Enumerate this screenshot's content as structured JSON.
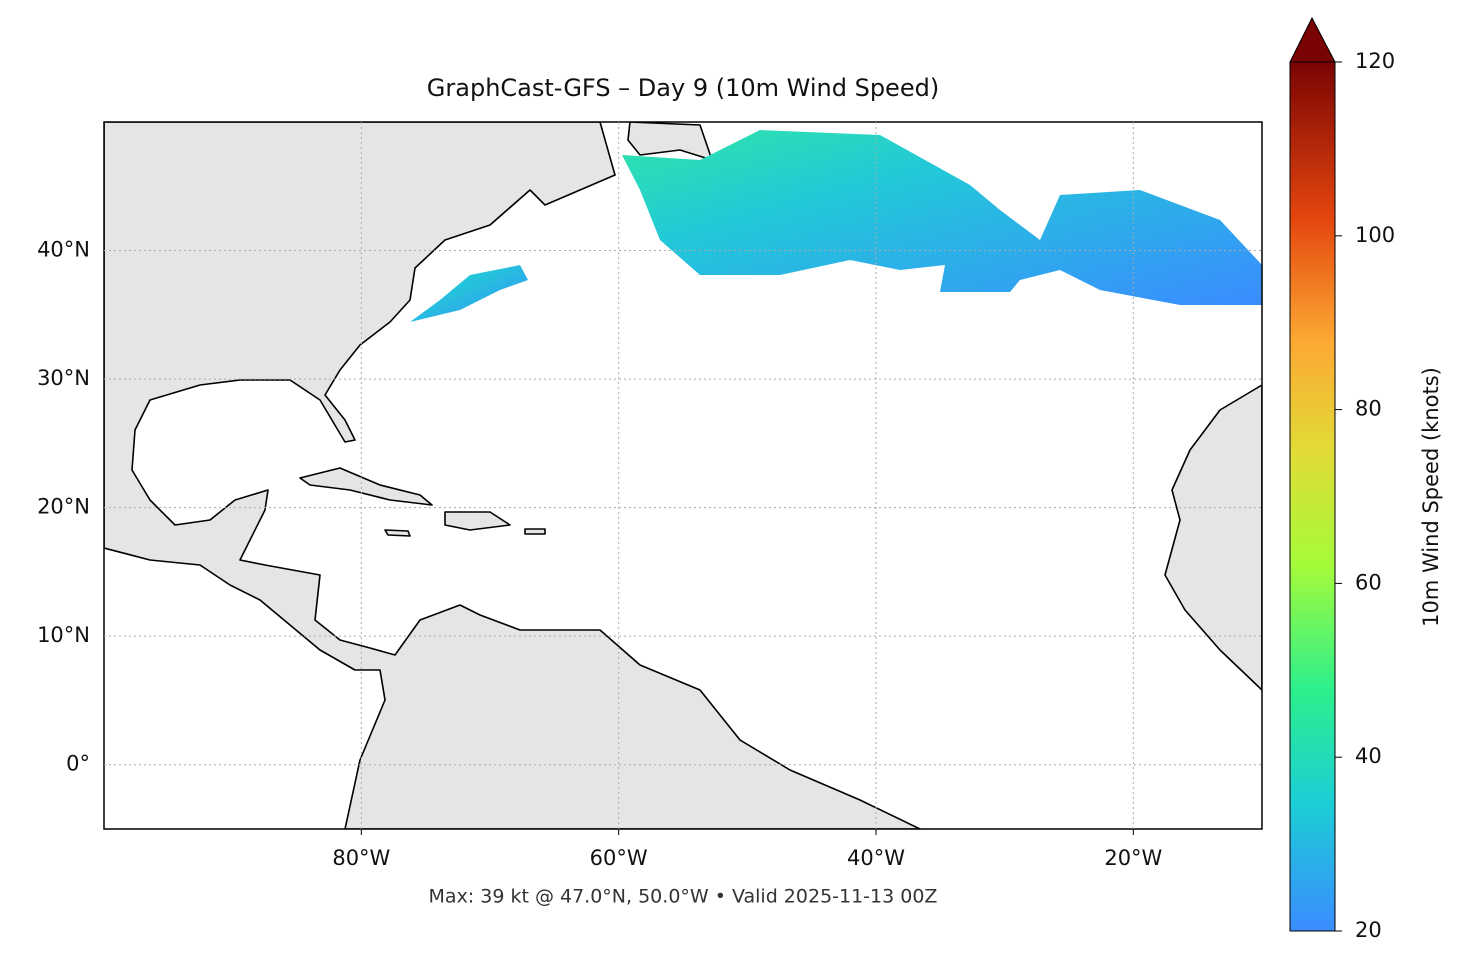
{
  "chart_data": {
    "type": "map",
    "title": "GraphCast-GFS – Day 9 (10m Wind Speed)",
    "footer": "Max: 39 kt @ 47.0°N, 50.0°W • Valid 2025-11-13 00Z",
    "xlim": [
      -100,
      -10
    ],
    "ylim": [
      -5,
      50
    ],
    "xticks": [
      {
        "value": -80,
        "label": "80°W"
      },
      {
        "value": -60,
        "label": "60°W"
      },
      {
        "value": -40,
        "label": "40°W"
      },
      {
        "value": -20,
        "label": "20°W"
      }
    ],
    "yticks": [
      {
        "value": 0,
        "label": "0°"
      },
      {
        "value": 10,
        "label": "10°N"
      },
      {
        "value": 20,
        "label": "20°N"
      },
      {
        "value": 30,
        "label": "30°N"
      },
      {
        "value": 40,
        "label": "40°N"
      }
    ],
    "grid": true,
    "colorbar": {
      "label": "10m Wind Speed (knots)",
      "lim": [
        20,
        120
      ],
      "ticks": [
        20,
        40,
        60,
        80,
        100,
        120
      ]
    }
  }
}
